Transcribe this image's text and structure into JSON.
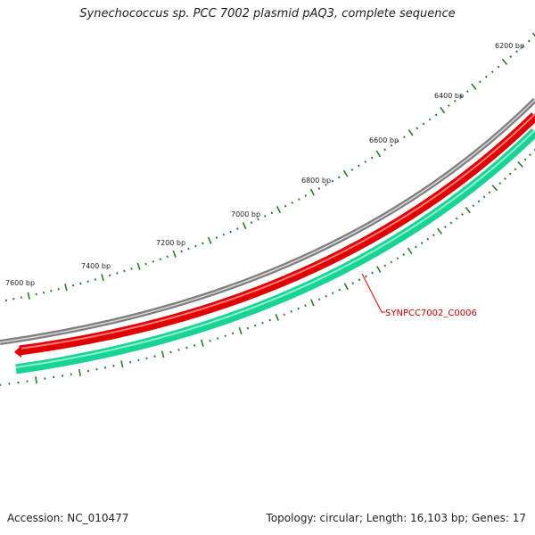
{
  "title": "Synechococcus sp. PCC 7002 plasmid pAQ3, complete sequence",
  "map": {
    "type": "circular-plasmid-map",
    "ticks": [
      "7600 bp",
      "7400 bp",
      "7200 bp",
      "7000 bp",
      "6800 bp",
      "6600 bp",
      "6400 bp",
      "6200 bp"
    ],
    "gene_label": "SYNPCC7002_C0006",
    "colors": {
      "backbone": "#8c8c8c",
      "forward_gene": "#e60000",
      "reverse_gene": "#1fd99a",
      "tick": "#2a7a2a",
      "gene_label": "#cc0000"
    }
  },
  "footer": {
    "accession": "Accession: NC_010477",
    "summary": "Topology: circular; Length: 16,103 bp; Genes: 17"
  }
}
